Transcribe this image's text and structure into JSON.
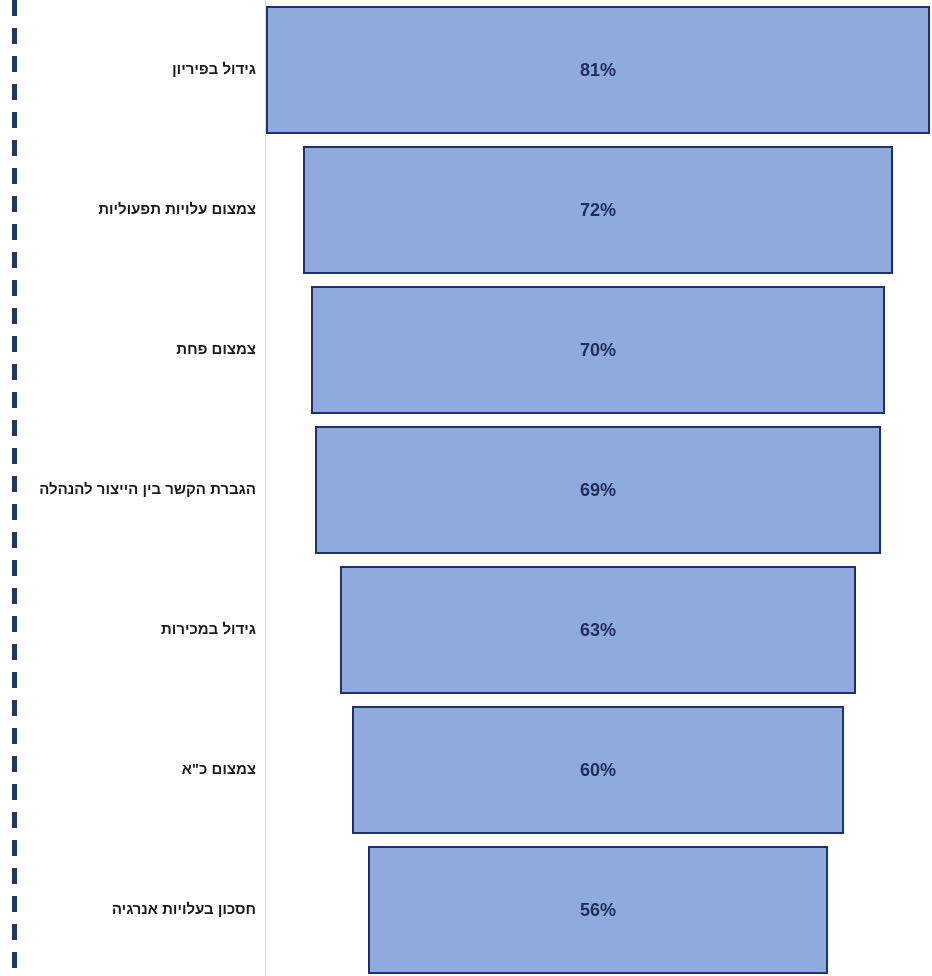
{
  "chart_data": {
    "type": "bar",
    "orientation": "horizontal-funnel",
    "categories": [
      "גידול בפיריון",
      "צמצום עלויות תפעוליות",
      "צמצום פחת",
      "הגברת הקשר בין הייצור להנהלה",
      "גידול במכירות",
      "צמצום כ\"א",
      "חסכון בעלויות אנרגיה"
    ],
    "values": [
      81,
      72,
      70,
      69,
      63,
      60,
      56
    ],
    "data_labels": [
      "81%",
      "72%",
      "70%",
      "69%",
      "63%",
      "60%",
      "56%"
    ],
    "xlim": [
      0,
      81
    ],
    "grid": false,
    "legend": "none"
  },
  "colors": {
    "bar_fill": "#8faadc",
    "bar_border": "#1f3070",
    "dashed_line": "#1f3864",
    "label_text": "#1a1a1a",
    "value_text": "#1f2e5a"
  }
}
